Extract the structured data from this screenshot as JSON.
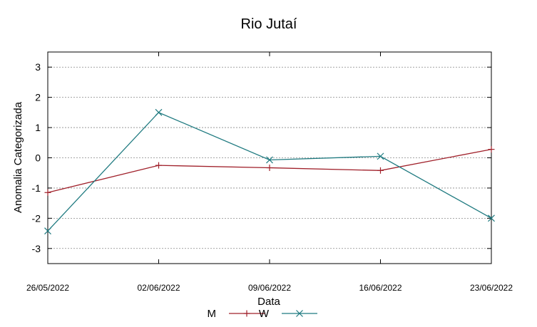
{
  "chart_data": {
    "type": "line",
    "title": "Rio Jutaí",
    "xlabel": "Data",
    "ylabel": "Anomalia Categorizada",
    "x": [
      "26/05/2022",
      "02/06/2022",
      "09/06/2022",
      "16/06/2022",
      "23/06/2022"
    ],
    "ylim": [
      -3.5,
      3.5
    ],
    "yticks": [
      3,
      2,
      1,
      0,
      -1,
      -2,
      -3
    ],
    "grid": "horizontal-dashed",
    "legend_position": "bottom-center",
    "series": [
      {
        "name": "M",
        "color": "#a0202a",
        "marker": "plus",
        "values": [
          -1.15,
          -0.25,
          -0.33,
          -0.42,
          0.28
        ]
      },
      {
        "name": "W",
        "color": "#1f7a80",
        "marker": "cross",
        "values": [
          -2.42,
          1.5,
          -0.07,
          0.05,
          -2.0
        ]
      }
    ]
  }
}
